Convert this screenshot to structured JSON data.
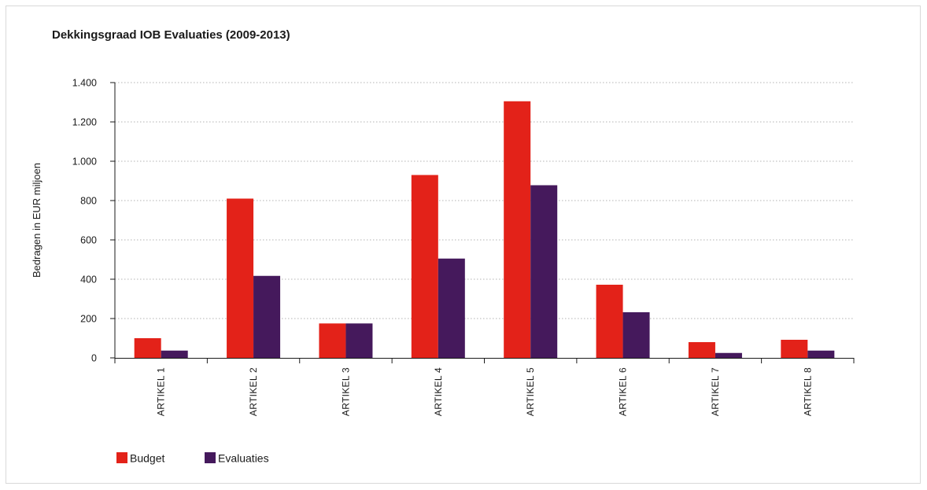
{
  "chart_data": {
    "type": "bar",
    "title": "Dekkingsgraad IOB Evaluaties (2009-2013)",
    "xlabel": "",
    "ylabel": "Bedragen in EUR miljoen",
    "ylim": [
      0,
      1400
    ],
    "yticks": [
      0,
      200,
      400,
      600,
      800,
      1000,
      1200,
      1400
    ],
    "ytick_labels": [
      "0",
      "200",
      "400",
      "600",
      "800",
      "1.000",
      "1.200",
      "1.400"
    ],
    "grid": "horizontal dotted",
    "legend_position": "bottom-left",
    "categories": [
      "ARTIKEL 1",
      "ARTIKEL 2",
      "ARTIKEL 3",
      "ARTIKEL 4",
      "ARTIKEL 5",
      "ARTIKEL 6",
      "ARTIKEL 7",
      "ARTIKEL 8"
    ],
    "series": [
      {
        "name": "Budget",
        "color": "#e32219",
        "values": [
          100,
          810,
          175,
          930,
          1305,
          372,
          80,
          92
        ]
      },
      {
        "name": "Evaluaties",
        "color": "#45195c",
        "values": [
          37,
          417,
          175,
          505,
          878,
          232,
          25,
          37
        ]
      }
    ]
  }
}
